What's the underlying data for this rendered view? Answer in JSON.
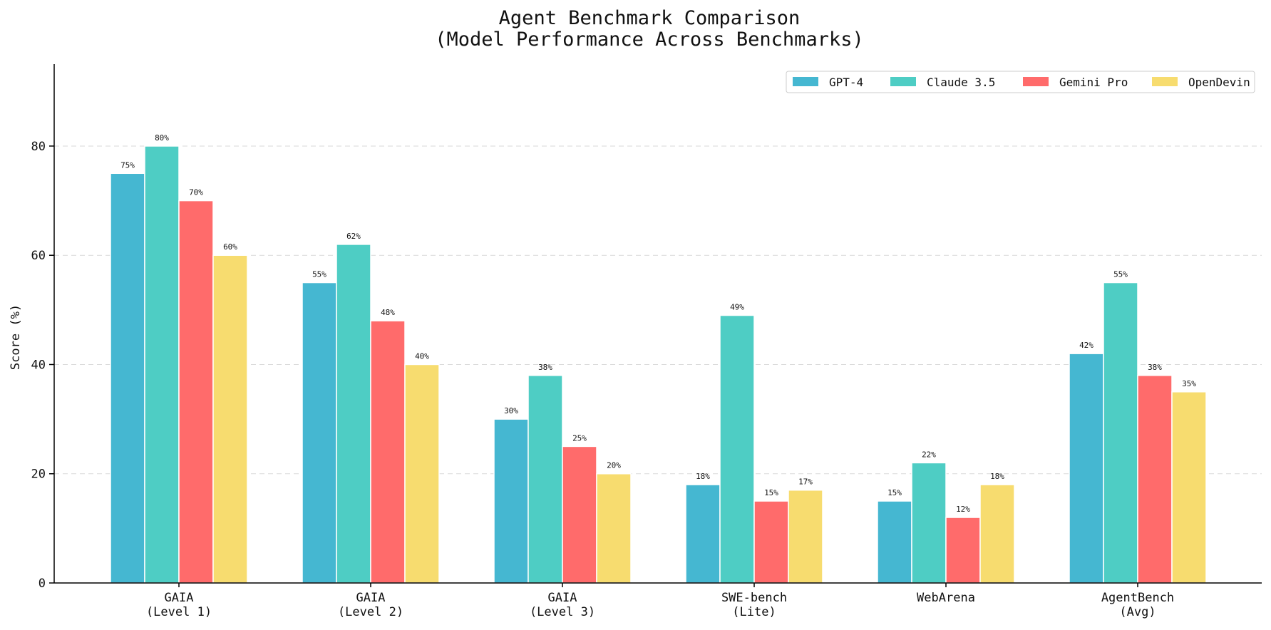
{
  "chart_data": {
    "type": "bar",
    "title": "Agent Benchmark Comparison",
    "subtitle": "(Model Performance Across Benchmarks)",
    "xlabel": "",
    "ylabel": "Score (%)",
    "ylim": [
      0,
      95
    ],
    "yticks": [
      0,
      20,
      40,
      60,
      80
    ],
    "grid": "horizontal dashed",
    "legend_position": "top-right",
    "categories": [
      [
        "GAIA",
        "(Level 1)"
      ],
      [
        "GAIA",
        "(Level 2)"
      ],
      [
        "GAIA",
        "(Level 3)"
      ],
      [
        "SWE-bench",
        "(Lite)"
      ],
      [
        "WebArena"
      ],
      [
        "AgentBench",
        "(Avg)"
      ]
    ],
    "series": [
      {
        "name": "GPT-4",
        "color": "#45B7D1",
        "values": [
          75,
          55,
          30,
          18,
          15,
          42
        ]
      },
      {
        "name": "Claude 3.5",
        "color": "#4ECDC4",
        "values": [
          80,
          62,
          38,
          49,
          22,
          55
        ]
      },
      {
        "name": "Gemini Pro",
        "color": "#FF6B6B",
        "values": [
          70,
          48,
          25,
          15,
          12,
          38
        ]
      },
      {
        "name": "OpenDevin",
        "color": "#F7DC6F",
        "values": [
          60,
          40,
          20,
          17,
          18,
          35
        ]
      }
    ],
    "value_suffix": "%"
  }
}
